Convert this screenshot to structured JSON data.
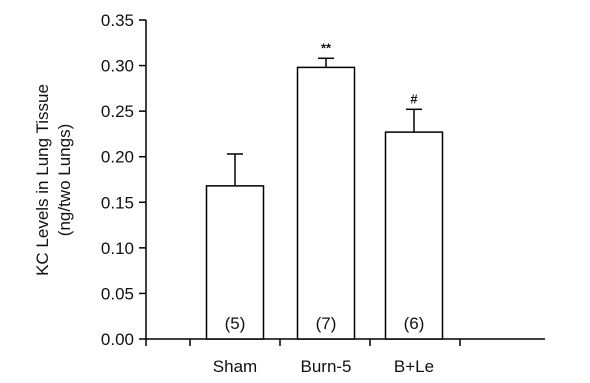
{
  "chart_data": {
    "type": "bar",
    "categories": [
      "Sham",
      "Burn-5",
      "B+Le"
    ],
    "values": [
      0.168,
      0.298,
      0.227
    ],
    "errors": [
      0.035,
      0.01,
      0.025
    ],
    "sample_sizes": [
      "(5)",
      "(7)",
      "(6)"
    ],
    "significance": [
      "",
      "**",
      "#"
    ],
    "ylabel_line1": "KC Levels in Lung Tissue",
    "ylabel_line2": "(ng/two Lungs)",
    "ylim": [
      0,
      0.35
    ],
    "yticks": [
      "0.00",
      "0.05",
      "0.10",
      "0.15",
      "0.20",
      "0.25",
      "0.30",
      "0.35"
    ],
    "grid": false,
    "bar_fill": "#ffffff",
    "bar_stroke": "#000000"
  }
}
